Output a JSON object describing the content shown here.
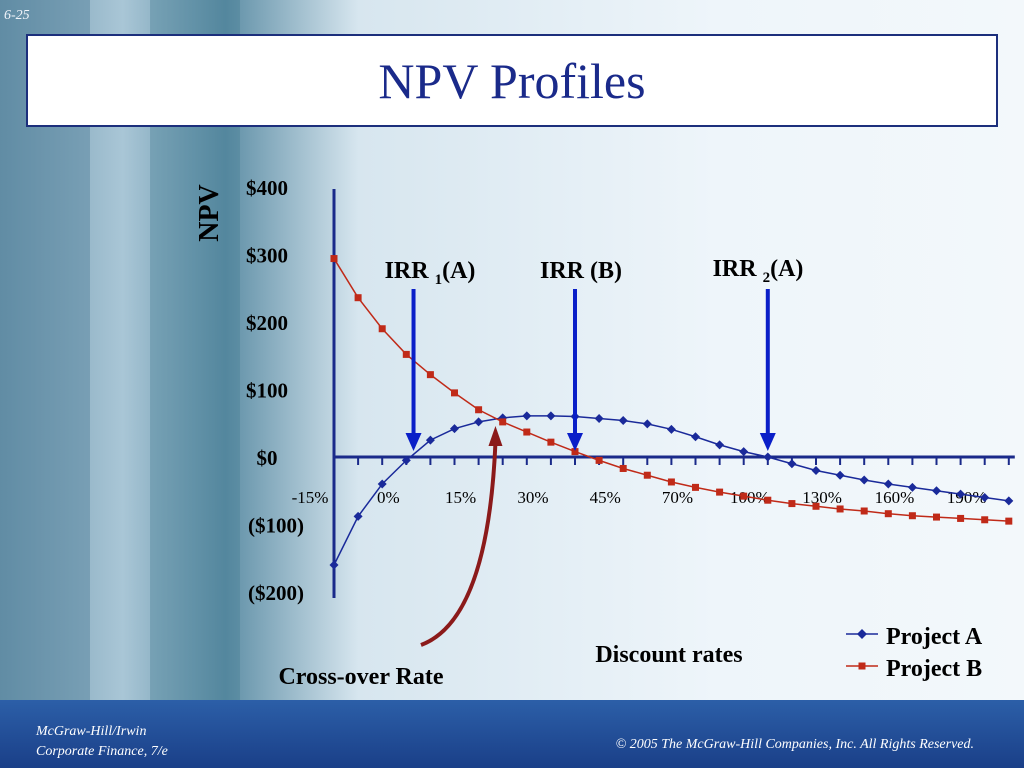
{
  "slide": {
    "number": "6-25",
    "title": "NPV Profiles"
  },
  "footer": {
    "publisher": "McGraw-Hill/Irwin",
    "book": "Corporate Finance, 7/e",
    "copyright": "© 2005  The McGraw-Hill Companies, Inc.  All Rights Reserved."
  },
  "colors": {
    "project_a": "#1a2a9a",
    "project_b": "#c02a18",
    "arrow_blue": "#0a1fc8",
    "arrow_red": "#8b1a1a",
    "axis": "#1a2a8a",
    "title_text": "#1a2a8a"
  },
  "chart_data": {
    "type": "line",
    "ylabel": "NPV",
    "xlabel": "Discount rates",
    "ylim": [
      -200,
      400
    ],
    "y_ticks": [
      {
        "value": 400,
        "label": "$400"
      },
      {
        "value": 300,
        "label": "$300"
      },
      {
        "value": 200,
        "label": "$200"
      },
      {
        "value": 100,
        "label": "$100"
      },
      {
        "value": 0,
        "label": "$0"
      },
      {
        "value": -100,
        "label": "($100)"
      },
      {
        "value": -200,
        "label": "($200)"
      }
    ],
    "x_tick_labels": [
      "-15%",
      "0%",
      "15%",
      "30%",
      "45%",
      "70%",
      "100%",
      "130%",
      "160%",
      "190%"
    ],
    "x_tick_label_index": [
      0,
      3,
      6,
      9,
      12,
      15,
      18,
      21,
      24,
      27
    ],
    "x_point_count": 29,
    "series": [
      {
        "name": "Project A",
        "marker": "diamond",
        "values": [
          -160,
          -88,
          -40,
          -5,
          25,
          42,
          52,
          58,
          61,
          61,
          60,
          57,
          54,
          49,
          41,
          30,
          18,
          8,
          0,
          -10,
          -20,
          -27,
          -34,
          -40,
          -45,
          -50,
          -55,
          -60,
          -65
        ]
      },
      {
        "name": "Project B",
        "marker": "square",
        "values": [
          294,
          236,
          190,
          152,
          122,
          95,
          70,
          52,
          37,
          22,
          8,
          -5,
          -17,
          -27,
          -37,
          -45,
          -52,
          -58,
          -64,
          -69,
          -73,
          -77,
          -80,
          -84,
          -87,
          -89,
          -91,
          -93,
          -95
        ]
      }
    ],
    "annotations": [
      {
        "label": "IRR ",
        "sub": "1",
        "suffix": "(A)",
        "x_index": 3.3
      },
      {
        "label": "IRR (B)",
        "sub": "",
        "suffix": "",
        "x_index": 10.0
      },
      {
        "label": "IRR ",
        "sub": "2",
        "suffix": "(A)",
        "x_index": 18.0
      }
    ],
    "crossover_label": "Cross-over Rate",
    "crossover_x_index": 6.7,
    "legend": "bottom-right",
    "grid": false
  }
}
